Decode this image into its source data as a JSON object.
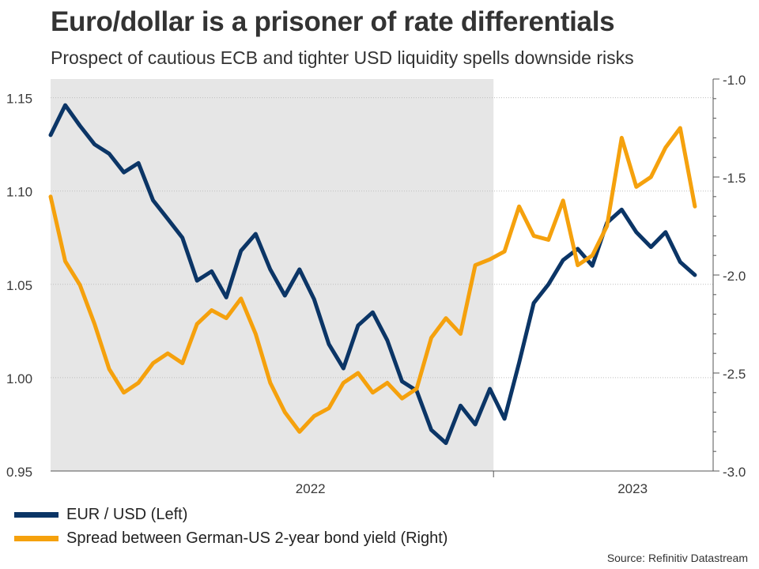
{
  "title": "Euro/dollar is a prisoner of rate differentials",
  "subtitle": "Prospect of cautious ECB and tighter USD liquidity spells downside risks",
  "source": "Source: Refinitiv Datastream",
  "colors": {
    "eurusd": "#0b3566",
    "spread": "#f5a10d",
    "shade": "#e6e6e6",
    "grid": "#bdbdbd"
  },
  "chart_data": {
    "type": "line",
    "title": "Euro/dollar is a prisoner of rate differentials",
    "xlim": [
      2021.79,
      2023.6
    ],
    "x_ticks": [
      {
        "label": "2022",
        "pos": 2022.5
      },
      {
        "label": "2023",
        "pos": 2023.38
      }
    ],
    "x_boundaries": [
      2023.0
    ],
    "shaded_region": [
      2021.79,
      2023.0
    ],
    "left_axis": {
      "ylim": [
        0.95,
        1.16
      ],
      "ticks": [
        "1.15",
        "1.10",
        "1.05",
        "1.00",
        "0.95"
      ],
      "tick_values": [
        1.15,
        1.1,
        1.05,
        1.0,
        0.95
      ]
    },
    "right_axis": {
      "ylim": [
        -3.0,
        -1.0
      ],
      "ticks": [
        "-1.0",
        "-1.5",
        "-2.0",
        "-2.5",
        "-3.0"
      ],
      "tick_values": [
        -1.0,
        -1.5,
        -2.0,
        -2.5,
        -3.0
      ]
    },
    "series": [
      {
        "name": "EUR / USD (Left)",
        "axis": "left",
        "x": [
          2021.79,
          2021.83,
          2021.87,
          2021.91,
          2021.95,
          2021.99,
          2022.03,
          2022.07,
          2022.11,
          2022.15,
          2022.19,
          2022.23,
          2022.27,
          2022.31,
          2022.35,
          2022.39,
          2022.43,
          2022.47,
          2022.51,
          2022.55,
          2022.59,
          2022.63,
          2022.67,
          2022.71,
          2022.75,
          2022.79,
          2022.83,
          2022.87,
          2022.91,
          2022.95,
          2022.99,
          2023.03,
          2023.07,
          2023.11,
          2023.15,
          2023.19,
          2023.23,
          2023.27,
          2023.31,
          2023.35,
          2023.39,
          2023.43,
          2023.47,
          2023.51,
          2023.55
        ],
        "values": [
          1.13,
          1.146,
          1.135,
          1.125,
          1.12,
          1.11,
          1.115,
          1.095,
          1.085,
          1.075,
          1.052,
          1.057,
          1.043,
          1.068,
          1.077,
          1.058,
          1.044,
          1.058,
          1.042,
          1.018,
          1.005,
          1.028,
          1.035,
          1.02,
          0.998,
          0.993,
          0.972,
          0.965,
          0.985,
          0.975,
          0.994,
          0.978,
          1.008,
          1.04,
          1.05,
          1.063,
          1.069,
          1.06,
          1.083,
          1.09,
          1.078,
          1.07,
          1.078,
          1.062,
          1.055
        ]
      },
      {
        "name": "Spread between German-US 2-year bond yield (Right)",
        "axis": "right",
        "x": [
          2021.79,
          2021.83,
          2021.87,
          2021.91,
          2021.95,
          2021.99,
          2022.03,
          2022.07,
          2022.11,
          2022.15,
          2022.19,
          2022.23,
          2022.27,
          2022.31,
          2022.35,
          2022.39,
          2022.43,
          2022.47,
          2022.51,
          2022.55,
          2022.59,
          2022.63,
          2022.67,
          2022.71,
          2022.75,
          2022.79,
          2022.83,
          2022.87,
          2022.91,
          2022.95,
          2022.99,
          2023.03,
          2023.07,
          2023.11,
          2023.15,
          2023.19,
          2023.23,
          2023.27,
          2023.31,
          2023.35,
          2023.39,
          2023.43,
          2023.47,
          2023.51,
          2023.55
        ],
        "values": [
          -1.6,
          -1.93,
          -2.05,
          -2.25,
          -2.48,
          -2.6,
          -2.55,
          -2.45,
          -2.4,
          -2.45,
          -2.25,
          -2.18,
          -2.22,
          -2.12,
          -2.3,
          -2.55,
          -2.7,
          -2.8,
          -2.72,
          -2.68,
          -2.55,
          -2.5,
          -2.6,
          -2.55,
          -2.63,
          -2.58,
          -2.32,
          -2.22,
          -2.3,
          -1.95,
          -1.92,
          -1.88,
          -1.65,
          -1.8,
          -1.82,
          -1.62,
          -1.95,
          -1.9,
          -1.75,
          -1.3,
          -1.55,
          -1.5,
          -1.35,
          -1.25,
          -1.65
        ]
      }
    ],
    "legend": [
      "EUR / USD (Left)",
      "Spread between German-US 2-year bond yield (Right)"
    ],
    "legend_position": "bottom-left"
  }
}
